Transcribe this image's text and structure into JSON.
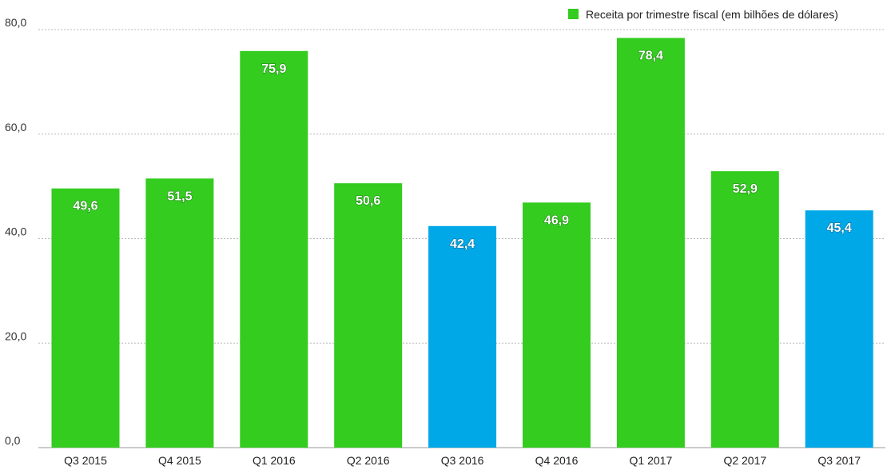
{
  "chart_data": {
    "type": "bar",
    "title": "",
    "xlabel": "",
    "ylabel": "",
    "categories": [
      "Q3 2015",
      "Q4 2015",
      "Q1 2016",
      "Q2 2016",
      "Q3 2016",
      "Q4 2016",
      "Q1 2017",
      "Q2 2017",
      "Q3 2017"
    ],
    "value_labels": [
      "49,6",
      "51,5",
      "75,9",
      "50,6",
      "42,4",
      "46,9",
      "78,4",
      "52,9",
      "45,4"
    ],
    "series": [
      {
        "name": "Receita por trimestre fiscal (em bilhões de dólares)",
        "values": [
          49.6,
          51.5,
          75.9,
          50.6,
          42.4,
          46.9,
          78.4,
          52.9,
          45.4
        ],
        "color": "#33CC1F"
      }
    ],
    "highlight_color": "#00A8E8",
    "highlight_indices": [
      4,
      8
    ],
    "ylim": [
      0,
      80
    ],
    "yticks": [
      0,
      20,
      40,
      60,
      80
    ],
    "ytick_labels": [
      "0,0",
      "20,0",
      "40,0",
      "60,0",
      "80,0"
    ],
    "grid": true,
    "legend_position": "top-right"
  }
}
